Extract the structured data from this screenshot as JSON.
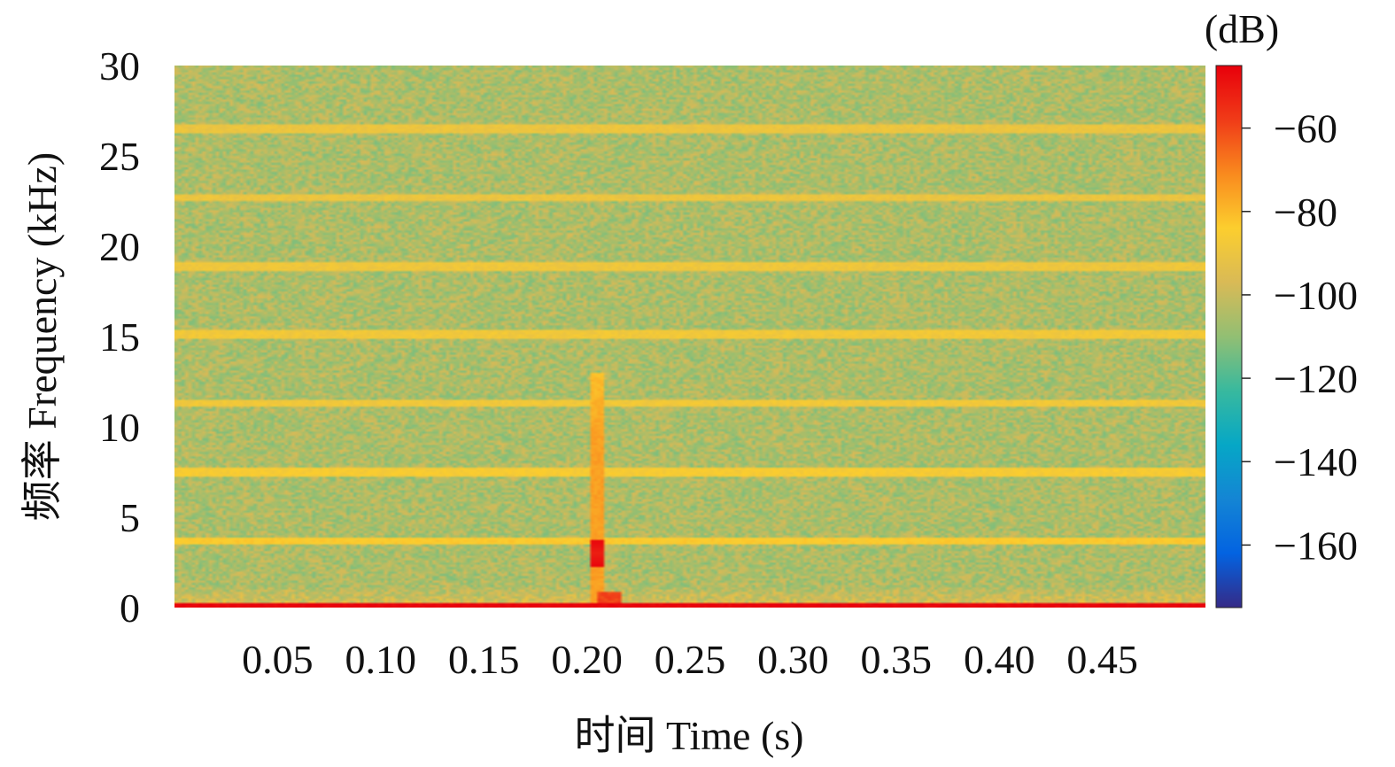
{
  "chart_data": {
    "type": "heatmap",
    "title": "",
    "xlabel": "时间 Time (s)",
    "ylabel": "频率 Frequency (kHz)",
    "xlim": [
      0,
      0.5
    ],
    "ylim": [
      0,
      30
    ],
    "x_ticks": [
      0.05,
      0.1,
      0.15,
      0.2,
      0.25,
      0.3,
      0.35,
      0.4,
      0.45
    ],
    "x_tick_labels": [
      "0.05",
      "0.10",
      "0.15",
      "0.20",
      "0.25",
      "0.30",
      "0.35",
      "0.40",
      "0.45"
    ],
    "y_ticks": [
      0,
      5,
      10,
      15,
      20,
      25,
      30
    ],
    "y_tick_labels": [
      "0",
      "5",
      "10",
      "15",
      "20",
      "25",
      "30"
    ],
    "grid": false,
    "colorbar": {
      "unit_label": "(dB)",
      "range": [
        -175,
        -45
      ],
      "ticks": [
        -60,
        -80,
        -100,
        -120,
        -140,
        -160
      ],
      "tick_labels": [
        "−60",
        "−80",
        "−100",
        "−120",
        "−140",
        "−160"
      ],
      "colormap": [
        "#352a87",
        "#0363e1",
        "#1485d4",
        "#06a7c6",
        "#38b99e",
        "#92bf73",
        "#d9ba56",
        "#fcce2e",
        "#f98a1e",
        "#f03b18",
        "#e8000b"
      ]
    },
    "background_level_db": -105,
    "low_freq_band": {
      "freq_khz": 0.1,
      "level_db": -48
    },
    "harmonic_lines": [
      {
        "freq_khz": 3.7,
        "level_db": -84
      },
      {
        "freq_khz": 7.5,
        "level_db": -86
      },
      {
        "freq_khz": 11.3,
        "level_db": -88
      },
      {
        "freq_khz": 15.1,
        "level_db": -88
      },
      {
        "freq_khz": 18.9,
        "level_db": -89
      },
      {
        "freq_khz": 22.7,
        "level_db": -90
      },
      {
        "freq_khz": 26.5,
        "level_db": -90
      }
    ],
    "transient_event": {
      "time_s": 0.205,
      "freq_range_khz": [
        0,
        13
      ],
      "peak": {
        "freq_khz": 3.0,
        "level_db": -52
      },
      "level_db": -75
    }
  }
}
